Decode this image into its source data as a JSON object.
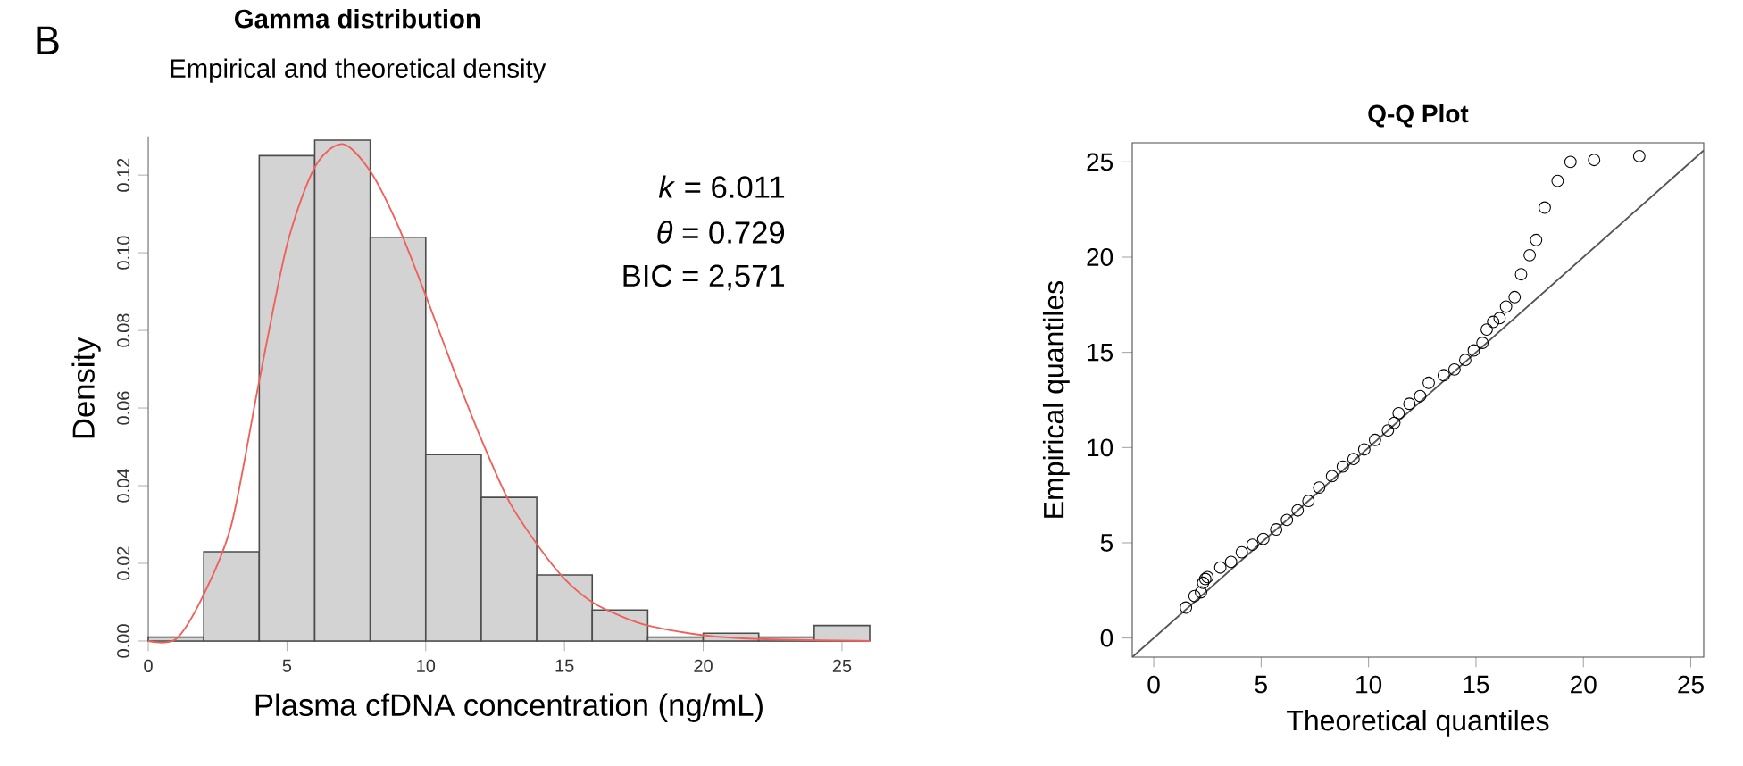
{
  "chart_data": [
    {
      "type": "histogram",
      "title": "Gamma distribution",
      "subtitle": "Empirical and theoretical density",
      "xlabel": "Plasma cfDNA concentration (ng/mL)",
      "ylabel": "Density",
      "annotations": [
        "B",
        "*k* = 6.011",
        "*θ* = 0.729",
        "BIC = 2,571"
      ],
      "xlim": [
        0,
        26
      ],
      "ylim": [
        0,
        0.13
      ],
      "xticks": [
        0,
        5,
        10,
        15,
        20,
        25
      ],
      "yticks": [
        {
          "value": 0,
          "label": "0.00"
        },
        {
          "value": 0.02,
          "label": "0.02"
        },
        {
          "value": 0.04,
          "label": "0.04"
        },
        {
          "value": 0.06,
          "label": "0.06"
        },
        {
          "value": 0.08,
          "label": "0.08"
        },
        {
          "value": 0.1,
          "label": "0.10"
        },
        {
          "value": 0.12,
          "label": "0.12"
        }
      ],
      "series": [
        {
          "type": "histogram",
          "color": "#d3d3d3",
          "bins": [
            0,
            2,
            4,
            6,
            8,
            10,
            12,
            14,
            16,
            18,
            20,
            22,
            24,
            26
          ],
          "values": [
            0.001,
            0.023,
            0.125,
            0.129,
            0.104,
            0.048,
            0.037,
            0.017,
            0.008,
            0.001,
            0.002,
            0.001,
            0.004
          ]
        },
        {
          "type": "line",
          "color": "#f0605a",
          "x": [
            0,
            1,
            2,
            3,
            4,
            5,
            6,
            7,
            8,
            9,
            10,
            11,
            12,
            13,
            14,
            15,
            16,
            17,
            18,
            20,
            22,
            26
          ],
          "values": [
            0,
            0.0005,
            0.012,
            0.03,
            0.067,
            0.102,
            0.122,
            0.128,
            0.121,
            0.107,
            0.089,
            0.07,
            0.052,
            0.036,
            0.025,
            0.016,
            0.01,
            0.0065,
            0.004,
            0.0015,
            0.0005,
            0
          ]
        }
      ]
    },
    {
      "type": "scatter",
      "title": "Q-Q Plot",
      "xlabel": "Theoretical quantiles",
      "ylabel": "Empirical quantiles",
      "xlim": [
        -1,
        25.6
      ],
      "ylim": [
        -1,
        26
      ],
      "xticks": [
        0,
        5,
        10,
        15,
        20,
        25
      ],
      "yticks": [
        0,
        5,
        10,
        15,
        20,
        25
      ],
      "series": [
        {
          "type": "scatter",
          "color": "#000000",
          "marker": "circle",
          "x": [
            1.5,
            1.9,
            2.2,
            2.3,
            2.4,
            2.5,
            3.1,
            3.6,
            4.1,
            4.6,
            5.1,
            5.7,
            6.2,
            6.7,
            7.2,
            7.7,
            8.3,
            8.8,
            9.3,
            9.8,
            10.3,
            10.9,
            11.2,
            11.4,
            11.9,
            12.4,
            12.8,
            13.5,
            14.0,
            14.5,
            14.9,
            15.3,
            15.5,
            15.8,
            16.1,
            16.4,
            16.8,
            17.1,
            17.5,
            17.8,
            18.2,
            18.8,
            19.4,
            20.5,
            22.6
          ],
          "values": [
            1.6,
            2.2,
            2.4,
            2.9,
            3.1,
            3.2,
            3.7,
            4.0,
            4.5,
            4.9,
            5.2,
            5.7,
            6.2,
            6.7,
            7.2,
            7.9,
            8.5,
            9.0,
            9.4,
            9.9,
            10.4,
            10.9,
            11.3,
            11.8,
            12.3,
            12.7,
            13.4,
            13.8,
            14.1,
            14.6,
            15.1,
            15.5,
            16.2,
            16.6,
            16.8,
            17.4,
            17.9,
            19.1,
            20.1,
            20.9,
            22.6,
            24.0,
            25.0,
            25.1,
            25.3
          ]
        },
        {
          "type": "line",
          "color": "#555555",
          "x": [
            -1,
            25.6
          ],
          "values": [
            -1,
            25.6
          ]
        }
      ]
    }
  ]
}
